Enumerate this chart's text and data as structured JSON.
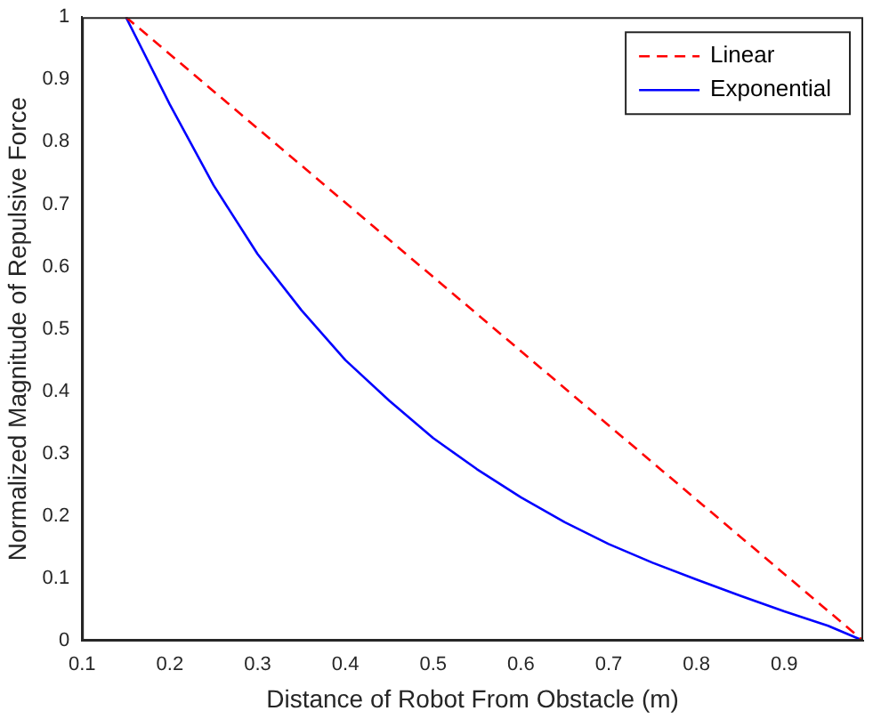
{
  "chart_data": {
    "type": "line",
    "xlabel": "Distance of Robot From Obstacle (m)",
    "ylabel": "Normalized Magnitude of Repulsive Force",
    "xlim": [
      0.1,
      0.99
    ],
    "xticks": [
      0.1,
      0.2,
      0.3,
      0.4,
      0.5,
      0.6,
      0.7,
      0.8,
      0.9
    ],
    "ylim": [
      0,
      1
    ],
    "yticks": [
      0,
      0.1,
      0.2,
      0.3,
      0.4,
      0.5,
      0.6,
      0.7,
      0.8,
      0.9,
      1
    ],
    "grid": false,
    "legend": "top right",
    "marker": "none",
    "series": [
      {
        "name": "Linear",
        "color": "#ff0000",
        "line_style": "dashed",
        "x": [
          0.15,
          0.99
        ],
        "values": [
          1,
          0
        ]
      },
      {
        "name": "Exponential",
        "color": "#0000ff",
        "line_style": "solid",
        "x": [
          0.15,
          0.2,
          0.25,
          0.3,
          0.35,
          0.4,
          0.45,
          0.5,
          0.55,
          0.6,
          0.65,
          0.7,
          0.75,
          0.8,
          0.85,
          0.9,
          0.95,
          0.99
        ],
        "values": [
          1,
          0.86,
          0.73,
          0.62,
          0.53,
          0.45,
          0.385,
          0.325,
          0.275,
          0.23,
          0.19,
          0.155,
          0.125,
          0.098,
          0.072,
          0.047,
          0.024,
          0
        ]
      }
    ]
  }
}
